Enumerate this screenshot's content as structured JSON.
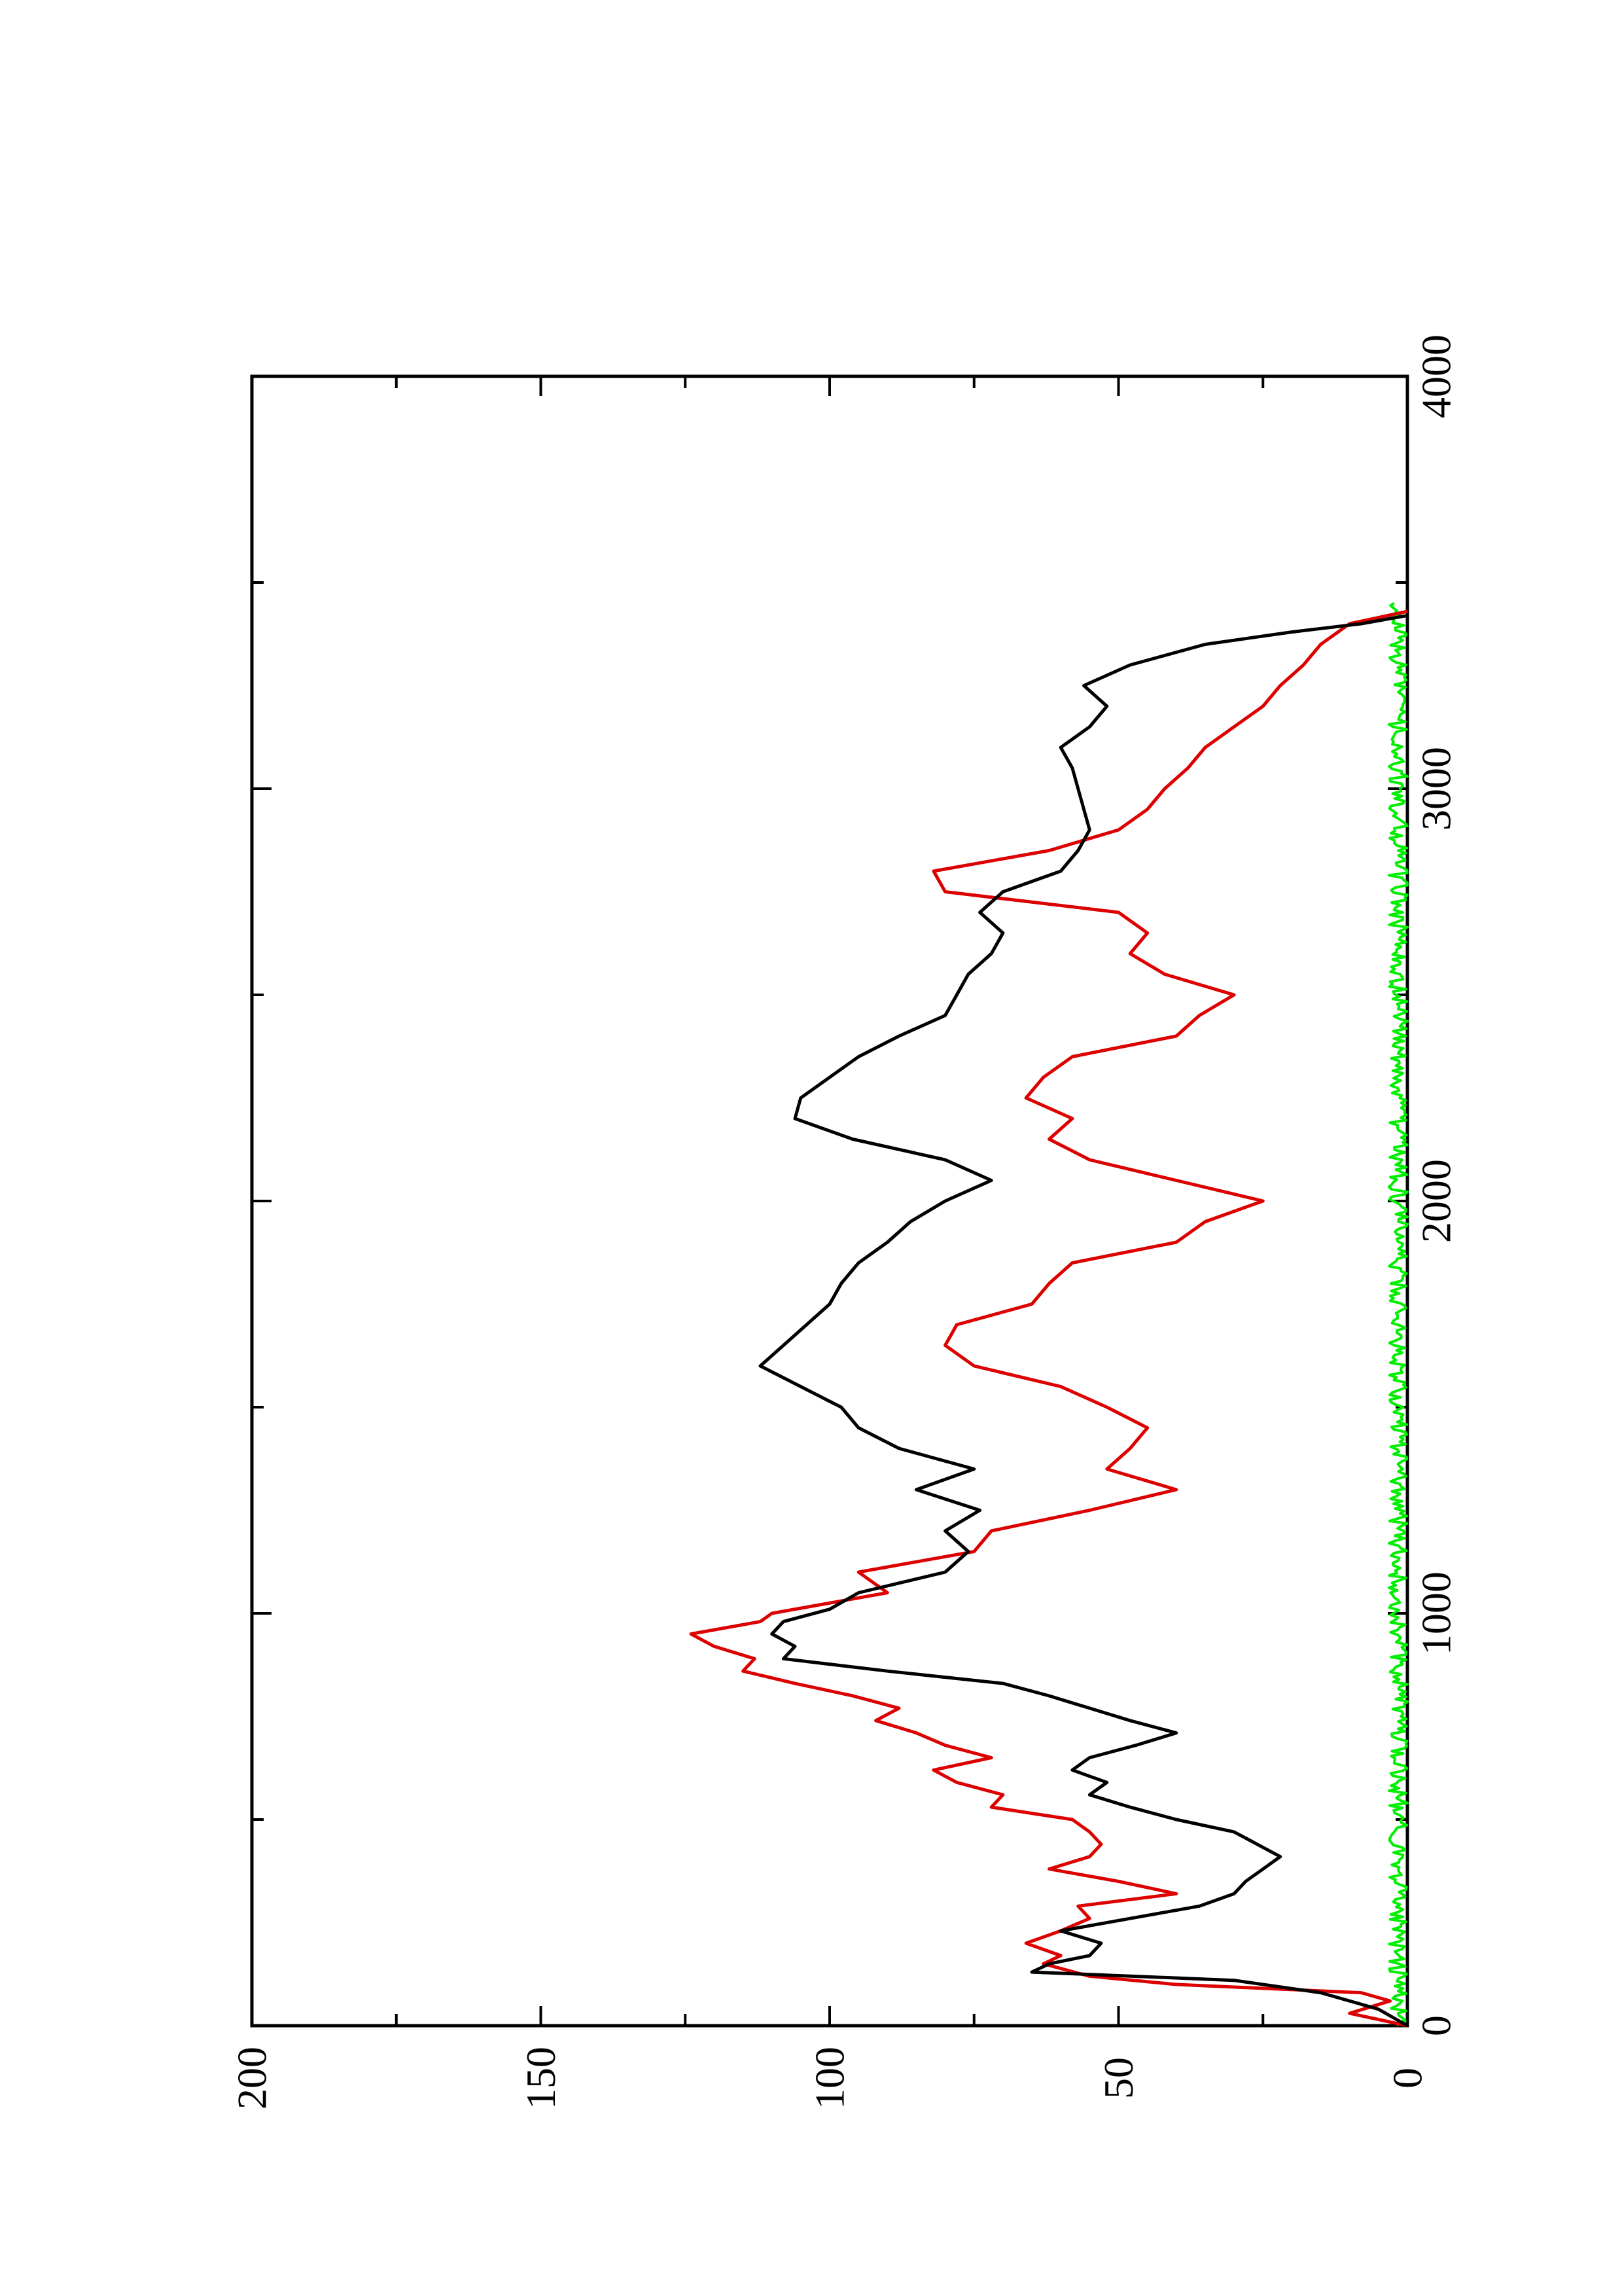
{
  "chart_data": {
    "type": "line",
    "orientation": "rotated-90-ccw",
    "title": "",
    "xlabel": "",
    "ylabel": "",
    "xlim": [
      0,
      4000
    ],
    "ylim": [
      0,
      200
    ],
    "x_ticks": [
      0,
      1000,
      2000,
      3000,
      4000
    ],
    "y_ticks": [
      0,
      50,
      100,
      150,
      200
    ],
    "x_minor_step": 500,
    "y_minor_step": 25,
    "grid": false,
    "legend": "none",
    "series": [
      {
        "color": "#000000",
        "x": [
          0,
          40,
          80,
          110,
          130,
          150,
          170,
          200,
          230,
          260,
          290,
          320,
          350,
          380,
          410,
          440,
          470,
          500,
          530,
          560,
          590,
          620,
          650,
          680,
          710,
          740,
          770,
          800,
          830,
          860,
          890,
          920,
          950,
          980,
          1010,
          1050,
          1100,
          1150,
          1200,
          1250,
          1300,
          1350,
          1400,
          1450,
          1500,
          1550,
          1600,
          1650,
          1700,
          1750,
          1800,
          1850,
          1900,
          1950,
          2000,
          2050,
          2100,
          2150,
          2200,
          2250,
          2300,
          2350,
          2400,
          2450,
          2500,
          2550,
          2600,
          2650,
          2700,
          2750,
          2800,
          2850,
          2900,
          2950,
          3000,
          3050,
          3100,
          3150,
          3200,
          3250,
          3300,
          3350,
          3380,
          3400,
          3420
        ],
        "y": [
          0,
          5,
          15,
          30,
          65,
          62,
          55,
          53,
          60,
          48,
          36,
          30,
          28,
          25,
          22,
          26,
          30,
          40,
          48,
          55,
          52,
          58,
          55,
          47,
          40,
          48,
          55,
          62,
          70,
          90,
          108,
          106,
          110,
          108,
          100,
          95,
          80,
          76,
          80,
          74,
          85,
          75,
          88,
          95,
          98,
          105,
          112,
          108,
          104,
          100,
          98,
          95,
          90,
          86,
          80,
          72,
          80,
          96,
          106,
          105,
          100,
          95,
          88,
          80,
          78,
          76,
          72,
          70,
          74,
          70,
          60,
          57,
          55,
          56,
          57,
          58,
          60,
          55,
          52,
          56,
          48,
          35,
          20,
          8,
          0
        ]
      },
      {
        "color": "#dd0000",
        "x": [
          0,
          30,
          60,
          80,
          100,
          120,
          150,
          170,
          200,
          230,
          260,
          290,
          320,
          350,
          380,
          410,
          440,
          470,
          500,
          530,
          560,
          590,
          620,
          650,
          680,
          710,
          740,
          770,
          800,
          830,
          860,
          890,
          920,
          950,
          980,
          1000,
          1050,
          1100,
          1150,
          1200,
          1250,
          1300,
          1350,
          1400,
          1450,
          1500,
          1550,
          1600,
          1650,
          1700,
          1750,
          1800,
          1850,
          1900,
          1950,
          2000,
          2050,
          2100,
          2150,
          2200,
          2250,
          2300,
          2350,
          2400,
          2450,
          2500,
          2550,
          2600,
          2650,
          2700,
          2750,
          2800,
          2850,
          2900,
          2950,
          3000,
          3050,
          3100,
          3150,
          3200,
          3250,
          3300,
          3350,
          3400,
          3430
        ],
        "y": [
          0,
          10,
          3,
          8,
          40,
          55,
          63,
          60,
          66,
          60,
          55,
          57,
          40,
          50,
          62,
          55,
          53,
          55,
          58,
          72,
          70,
          78,
          82,
          72,
          80,
          85,
          92,
          88,
          96,
          106,
          115,
          113,
          120,
          124,
          112,
          110,
          90,
          95,
          75,
          72,
          55,
          40,
          52,
          48,
          45,
          52,
          60,
          75,
          80,
          78,
          65,
          62,
          58,
          40,
          35,
          25,
          40,
          55,
          62,
          58,
          66,
          63,
          58,
          40,
          36,
          30,
          42,
          48,
          45,
          50,
          80,
          82,
          62,
          50,
          45,
          42,
          38,
          35,
          30,
          25,
          22,
          18,
          15,
          10,
          0
        ]
      },
      {
        "color": "#00ee00",
        "x": [
          0,
          3450
        ],
        "y": [
          0,
          0
        ]
      }
    ]
  }
}
